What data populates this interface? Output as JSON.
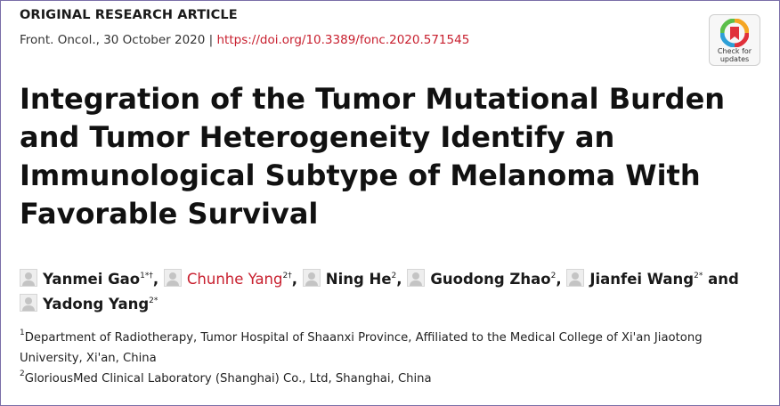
{
  "header": {
    "article_type": "ORIGINAL RESEARCH ARTICLE",
    "journal_date": "Front. Oncol., 30 October 2020 |",
    "doi": "https://doi.org/10.3389/fonc.2020.571545"
  },
  "badge": {
    "line1": "Check for",
    "line2": "updates",
    "icon": "check-for-updates-icon"
  },
  "title": "Integration of the Tumor Mutational Burden and Tumor Heterogeneity Identify an Immunological Subtype of Melanoma With Favorable Survival",
  "authors": [
    {
      "name": "Yanmei Gao",
      "sup": "1*†",
      "after": ",",
      "highlight": false
    },
    {
      "name": "Chunhe Yang",
      "sup": "2†",
      "after": ",",
      "highlight": true
    },
    {
      "name": "Ning He",
      "sup": "2",
      "after": ",",
      "highlight": false
    },
    {
      "name": "Guodong Zhao",
      "sup": "2",
      "after": ",",
      "highlight": false
    },
    {
      "name": "Jianfei Wang",
      "sup": "2*",
      "after": " and",
      "highlight": false
    },
    {
      "name": "Yadong Yang",
      "sup": "2*",
      "after": "",
      "highlight": false
    }
  ],
  "affiliations": [
    {
      "num": "1",
      "text": "Department of Radiotherapy, Tumor Hospital of Shaanxi Province, Affiliated to the Medical College of Xi'an Jiaotong University, Xi'an, China"
    },
    {
      "num": "2",
      "text": "GloriousMed Clinical Laboratory (Shanghai) Co., Ltd, Shanghai, China"
    }
  ],
  "colors": {
    "accent_red": "#c8202f",
    "frame_border": "#7a6ea8"
  }
}
